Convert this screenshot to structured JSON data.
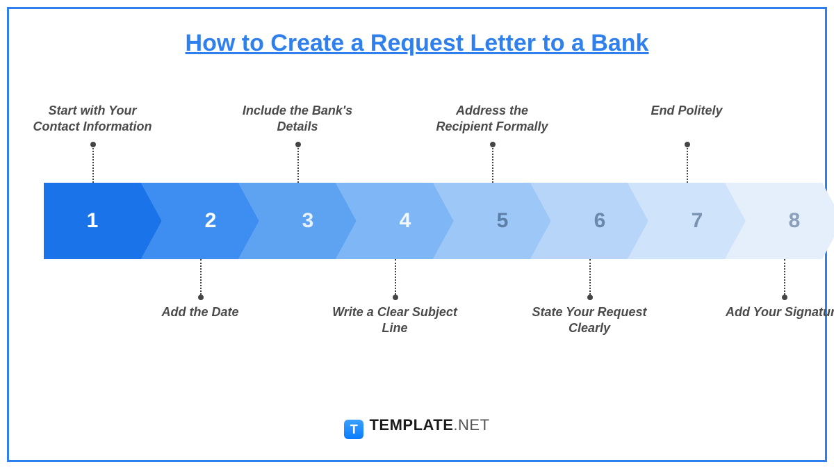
{
  "title": "How to Create a Request Letter to a Bank",
  "title_color": "#2f80ed",
  "border_color": "#2f80ed",
  "background_color": "#ffffff",
  "label_color": "#4a4a4a",
  "connector_color": "#444444",
  "title_fontsize": 34,
  "label_fontsize": 18,
  "number_fontsize": 30,
  "chart": {
    "type": "chevron-process",
    "segment_width": 140,
    "arrow_depth": 30,
    "height": 110,
    "steps": [
      {
        "num": "1",
        "label": "Start with Your Contact Information",
        "fill": "#1a73e8",
        "num_color": "#ffffff",
        "label_pos": "top"
      },
      {
        "num": "2",
        "label": "Add the Date",
        "fill": "#3d8ef0",
        "num_color": "#ffffff",
        "label_pos": "bottom"
      },
      {
        "num": "3",
        "label": "Include the Bank's Details",
        "fill": "#5ea2f2",
        "num_color": "#e8f0fb",
        "label_pos": "top"
      },
      {
        "num": "4",
        "label": "Write a Clear Subject Line",
        "fill": "#7fb6f5",
        "num_color": "#f2f7fd",
        "label_pos": "bottom"
      },
      {
        "num": "5",
        "label": "Address the Recipient Formally",
        "fill": "#9cc7f7",
        "num_color": "#5c7fa8",
        "label_pos": "top"
      },
      {
        "num": "6",
        "label": "State Your Request Clearly",
        "fill": "#b6d5f9",
        "num_color": "#6a88ab",
        "label_pos": "bottom"
      },
      {
        "num": "7",
        "label": "End Politely",
        "fill": "#cfe3fb",
        "num_color": "#7a93b1",
        "label_pos": "top"
      },
      {
        "num": "8",
        "label": "Add Your Signature",
        "fill": "#e5effc",
        "num_color": "#8aa0ba",
        "label_pos": "bottom"
      }
    ]
  },
  "footer": {
    "icon_letter": "T",
    "brand": "TEMPLATE",
    "suffix": ".NET"
  }
}
